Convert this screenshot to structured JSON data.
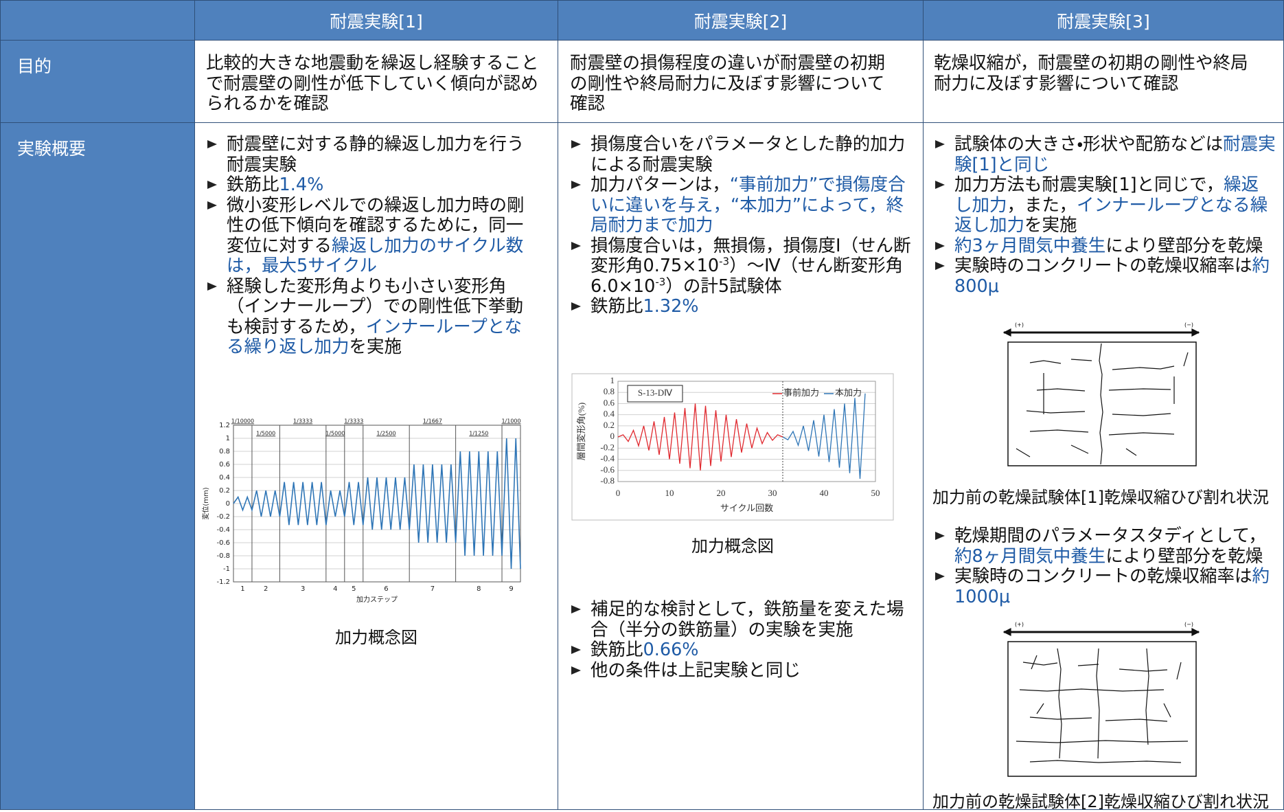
{
  "header": {
    "columns": [
      "耐震実験[1]",
      "耐震実験[2]",
      "耐震実験[3]"
    ]
  },
  "rows": [
    {
      "label": "目的",
      "cells": [
        "比較的大きな地震動を繰返し経験することで耐震壁の剛性が低下していく傾向が認められるかを確認",
        "耐震壁の損傷程度の違いが耐震壁の初期の剛性や終局耐力に及ぼす影響について確認",
        "乾燥収縮が，耐震壁の初期の剛性や終局耐力に及ぼす影響について確認"
      ]
    },
    {
      "label": "実験概要",
      "cells": [
        {
          "blocks": [
            {
              "bullets": [
                [
                  "耐震壁に対する静的繰返し加力を行う耐震実験"
                ],
                [
                  "鉄筋比",
                  {
                    "text": "1.4%",
                    "color": "#1f5ba6"
                  }
                ],
                [
                  "微小変形レベルでの繰返し加力時の剛性の低下傾向を確認するために，同一変位に対する",
                  {
                    "text": "繰返し加力のサイクル数は，最大5サイクル",
                    "color": "#1f5ba6"
                  }
                ],
                [
                  "経験した変形角よりも小さい変形角（インナーループ）での剛性低下挙動も検討するため，",
                  {
                    "text": "インナーループとなる繰り返し加力",
                    "color": "#1f5ba6"
                  },
                  "を実施"
                ]
              ]
            },
            {
              "chart": {
                "type": "line",
                "color": "#2e75b6",
                "values": [
                  0,
                  0.1,
                  -0.1,
                  0.1,
                  -0.1,
                  0.2,
                  -0.2,
                  0.2,
                  -0.2,
                  0.2,
                  -0.2,
                  0.33,
                  -0.33,
                  0.33,
                  -0.33,
                  0.33,
                  -0.33,
                  0.33,
                  -0.33,
                  0.33,
                  -0.33,
                  0.2,
                  -0.2,
                  0.2,
                  -0.2,
                  0.33,
                  -0.33,
                  0.33,
                  -0.33,
                  0.4,
                  -0.4,
                  0.4,
                  -0.4,
                  0.4,
                  -0.4,
                  0.4,
                  -0.4,
                  0.4,
                  -0.4,
                  0.6,
                  -0.6,
                  0.6,
                  -0.6,
                  0.6,
                  -0.6,
                  0.6,
                  -0.6,
                  0.6,
                  -0.6,
                  0.8,
                  -0.8,
                  0.8,
                  -0.8,
                  0.8,
                  -0.8,
                  0.8,
                  -0.8,
                  0.8,
                  -0.8,
                  1,
                  -1,
                  1,
                  -1
                ],
                "xlim": [
                  0,
                  62
                ],
                "xticks": [
                  {
                    "value": 0,
                    "label": "1"
                  },
                  {
                    "value": 4,
                    "label": "2"
                  },
                  {
                    "value": 10,
                    "label": "3"
                  },
                  {
                    "value": 20,
                    "label": "4"
                  },
                  {
                    "value": 24,
                    "label": "5"
                  },
                  {
                    "value": 28,
                    "label": "6"
                  },
                  {
                    "value": 38,
                    "label": "7"
                  },
                  {
                    "value": 48,
                    "label": "8"
                  },
                  {
                    "value": 58,
                    "label": "9"
                  }
                ],
                "step_ratios": [
                  "1/10000",
                  "1/5000",
                  "1/3333",
                  "1/5000",
                  "1/3333",
                  "1/2500",
                  "1/1667",
                  "1/1250",
                  "1/1000"
                ],
                "ylim": [
                  -1.2,
                  1.2
                ],
                "yticks": [
                  -1.2,
                  -1,
                  -0.8,
                  -0.6,
                  -0.4,
                  -0.2,
                  0,
                  0.2,
                  0.4,
                  0.6,
                  0.8,
                  1,
                  1.2
                ],
                "grid": true,
                "ylabel": "変位(mm)",
                "xlabel": "加力ステップ"
              },
              "caption": "加力概念図"
            }
          ]
        },
        {
          "blocks": [
            {
              "bullets": [
                [
                  "損傷度合いをパラメータとした静的加力による耐震実験"
                ],
                [
                  "加力パターンは，",
                  {
                    "text": "“事前加力”で損傷度合いに違いを与え，“本加力”によって，終局耐力まで加力",
                    "color": "#1f5ba6"
                  }
                ],
                [
                  "損傷度合いは，無損傷，損傷度Ⅰ（せん断変形角0.75×10",
                  {
                    "text": "-3",
                    "sup": true
                  },
                  "）～Ⅳ（せん断変形角6.0×10",
                  {
                    "text": "-3",
                    "sup": true
                  },
                  "）の計5試験体"
                ],
                [
                  "鉄筋比",
                  {
                    "text": "1.32%",
                    "color": "#1f5ba6"
                  }
                ]
              ]
            },
            {
              "chart": {
                "type": "line",
                "panel_label": "S-13-DⅣ",
                "series": [
                  {
                    "name": "事前加力",
                    "color": "#e0282e",
                    "x": [
                      0,
                      1,
                      2,
                      3,
                      4,
                      5,
                      6,
                      7,
                      8,
                      9,
                      10,
                      11,
                      12,
                      13,
                      14,
                      15,
                      16,
                      17,
                      18,
                      19,
                      20,
                      21,
                      22,
                      23,
                      24,
                      25,
                      26,
                      27,
                      28,
                      29,
                      30,
                      31,
                      32
                    ],
                    "values": [
                      0,
                      0.04,
                      -0.08,
                      0.12,
                      -0.16,
                      0.2,
                      -0.24,
                      0.28,
                      -0.32,
                      0.36,
                      -0.4,
                      0.44,
                      -0.48,
                      0.52,
                      -0.56,
                      0.6,
                      -0.6,
                      0.56,
                      -0.52,
                      0.48,
                      -0.44,
                      0.4,
                      -0.36,
                      0.32,
                      -0.28,
                      0.24,
                      -0.2,
                      0.16,
                      -0.12,
                      0.08,
                      -0.06,
                      0.04,
                      0
                    ]
                  },
                  {
                    "name": "本加力",
                    "color": "#2e75b6",
                    "x": [
                      32,
                      33,
                      34,
                      35,
                      36,
                      37,
                      38,
                      39,
                      40,
                      41,
                      42,
                      43,
                      44,
                      45,
                      46,
                      47,
                      48
                    ],
                    "values": [
                      0,
                      -0.05,
                      0.1,
                      -0.15,
                      0.2,
                      -0.25,
                      0.3,
                      -0.35,
                      0.4,
                      -0.45,
                      0.5,
                      -0.55,
                      0.6,
                      -0.65,
                      0.7,
                      -0.75,
                      0.78
                    ]
                  }
                ],
                "xlim": [
                  0,
                  50
                ],
                "xticks": [
                  0,
                  10,
                  20,
                  30,
                  40,
                  50
                ],
                "ylim": [
                  -0.8,
                  1
                ],
                "yticks": [
                  -0.8,
                  -0.6,
                  -0.4,
                  -0.2,
                  0,
                  0.2,
                  0.4,
                  0.6,
                  0.8,
                  1
                ],
                "grid": true,
                "xlabel": "サイクル回数",
                "ylabel": "層間変形角(%)"
              },
              "caption": "加力概念図"
            },
            {
              "bullets": [
                [
                  "補足的な検討として，鉄筋量を変えた場合（半分の鉄筋量）の実験を実施"
                ],
                [
                  "鉄筋比",
                  {
                    "text": "0.66%",
                    "color": "#1f5ba6"
                  }
                ],
                [
                  "他の条件は上記実験と同じ"
                ]
              ]
            }
          ]
        },
        {
          "blocks": [
            {
              "bullets": [
                [
                  "試験体の大きさ・形状や配筋などは",
                  {
                    "text": "耐震実験[1]と同じ",
                    "color": "#1f5ba6"
                  }
                ],
                [
                  "加力方法も耐震実験[1]と同じで，",
                  {
                    "text": "繰返し加力",
                    "color": "#1f5ba6"
                  },
                  "，また，",
                  {
                    "text": "インナーループとなる繰返し加力",
                    "color": "#1f5ba6"
                  },
                  "を実施"
                ],
                [
                  {
                    "text": "約3ヶ月間気中養生",
                    "color": "#1f5ba6"
                  },
                  "により壁部分を乾燥"
                ],
                [
                  "実験時のコンクリートの乾燥収縮率は",
                  {
                    "text": "約800μ",
                    "color": "#1f5ba6"
                  }
                ]
              ]
            },
            {
              "figure": {
                "plus": "(+)",
                "minus": "(−)"
              },
              "caption": "加力前の乾燥試験体[1]乾燥収縮ひび割れ状況"
            },
            {
              "bullets": [
                [
                  "乾燥期間のパラメータスタディとして，",
                  {
                    "text": "約8ヶ月間気中養生",
                    "color": "#1f5ba6"
                  },
                  "により壁部分を乾燥"
                ],
                [
                  "実験時のコンクリートの乾燥収縮率は",
                  {
                    "text": "約1000μ",
                    "color": "#1f5ba6"
                  }
                ]
              ]
            },
            {
              "figure": {
                "plus": "(+)",
                "minus": "(−)"
              },
              "caption": "加力前の乾燥試験体[2]乾燥収縮ひび割れ状況"
            }
          ]
        }
      ]
    }
  ]
}
